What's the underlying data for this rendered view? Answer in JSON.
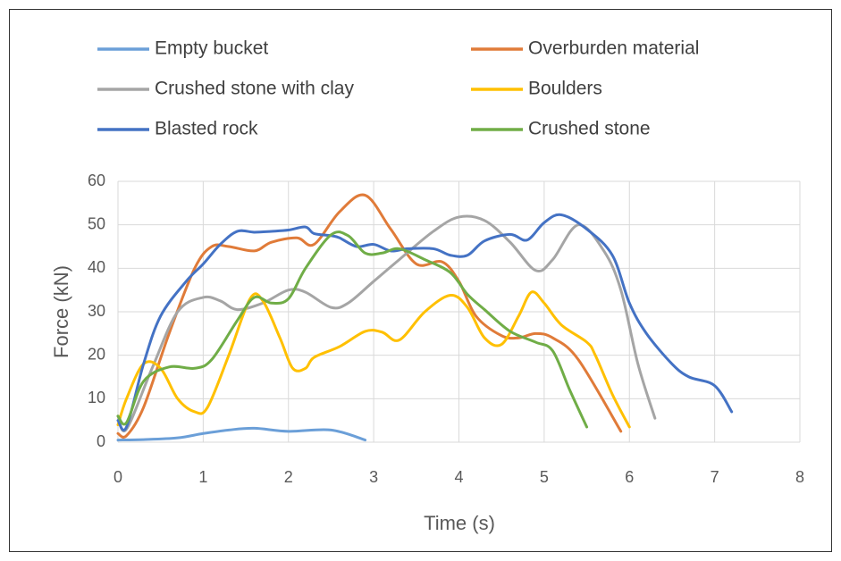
{
  "chart_data": {
    "type": "line",
    "x_label": "Time (s)",
    "y_label": "Force (kN)",
    "xlim": [
      0,
      8
    ],
    "xticks": [
      0,
      1,
      2,
      3,
      4,
      5,
      6,
      7,
      8
    ],
    "ylim": [
      0,
      60
    ],
    "yticks": [
      0,
      10,
      20,
      30,
      40,
      50,
      60
    ],
    "grid": true,
    "legend": "top",
    "series": [
      {
        "name": "Empty bucket",
        "color": "#6b9fd8",
        "x": [
          0,
          0.3,
          0.7,
          1,
          1.3,
          1.6,
          2,
          2.5,
          2.9
        ],
        "values": [
          0.5,
          0.6,
          1,
          2,
          2.8,
          3.2,
          2.5,
          2.8,
          0.5
        ]
      },
      {
        "name": "Overburden material",
        "color": "#e07b39",
        "x": [
          0,
          0.1,
          0.3,
          0.6,
          0.9,
          1.1,
          1.3,
          1.6,
          1.8,
          2.1,
          2.3,
          2.6,
          2.9,
          3.2,
          3.5,
          3.8,
          4.0,
          4.2,
          4.5,
          4.7,
          4.9,
          5.1,
          5.4,
          5.9
        ],
        "values": [
          2,
          1.5,
          8,
          25,
          40,
          45,
          45,
          44,
          46,
          47,
          45.5,
          53,
          56.8,
          49,
          41,
          41.5,
          37,
          29,
          24.5,
          24,
          25,
          24,
          19,
          2.5
        ]
      },
      {
        "name": "Crushed stone with clay",
        "color": "#a5a5a5",
        "x": [
          0,
          0.1,
          0.4,
          0.7,
          1,
          1.2,
          1.4,
          1.7,
          2,
          2.2,
          2.5,
          2.7,
          3,
          3.3,
          3.7,
          4,
          4.3,
          4.6,
          4.9,
          5.1,
          5.4,
          5.7,
          5.9,
          6.1,
          6.3
        ],
        "values": [
          6,
          3,
          17,
          30,
          33.3,
          32.5,
          30.5,
          32,
          35,
          34.5,
          31,
          32,
          37,
          42,
          48.5,
          51.8,
          51,
          46,
          39.5,
          42,
          50,
          44,
          35,
          18,
          5.5
        ]
      },
      {
        "name": "Boulders",
        "color": "#ffc000",
        "x": [
          0,
          0.1,
          0.3,
          0.5,
          0.7,
          0.9,
          1.05,
          1.3,
          1.55,
          1.7,
          1.9,
          2.05,
          2.2,
          2.3,
          2.6,
          2.9,
          3.1,
          3.3,
          3.6,
          3.9,
          4.1,
          4.3,
          4.5,
          4.7,
          4.85,
          5.0,
          5.2,
          5.5,
          5.6,
          5.8,
          6.0
        ],
        "values": [
          4,
          10,
          18,
          17,
          10,
          7,
          8,
          20,
          33,
          32.5,
          24,
          17,
          17,
          19.5,
          22,
          25.5,
          25.3,
          23.5,
          30,
          33.8,
          31,
          24,
          22.5,
          29,
          34.5,
          32,
          27,
          23,
          20,
          11,
          3.5
        ]
      },
      {
        "name": "Blasted rock",
        "color": "#4472c4",
        "x": [
          0,
          0.1,
          0.3,
          0.5,
          0.8,
          1,
          1.2,
          1.4,
          1.6,
          1.8,
          2,
          2.2,
          2.3,
          2.5,
          2.6,
          2.8,
          3,
          3.2,
          3.4,
          3.7,
          3.9,
          4.1,
          4.3,
          4.6,
          4.8,
          5.0,
          5.2,
          5.5,
          5.8,
          6.0,
          6.2,
          6.5,
          6.7,
          7.0,
          7.2
        ],
        "values": [
          5,
          3.5,
          18,
          29,
          37,
          41,
          45.5,
          48.5,
          48.3,
          48.5,
          48.8,
          49.5,
          48,
          47.5,
          47,
          45,
          45.5,
          44,
          44.5,
          44.5,
          43,
          43,
          46.3,
          47.8,
          46.5,
          50.5,
          52.3,
          49,
          43,
          32,
          25,
          18,
          15,
          13,
          7
        ]
      },
      {
        "name": "Crushed stone",
        "color": "#70ad47",
        "x": [
          0,
          0.1,
          0.3,
          0.6,
          0.9,
          1.1,
          1.4,
          1.6,
          1.8,
          2,
          2.2,
          2.5,
          2.7,
          2.9,
          3.1,
          3.3,
          3.6,
          3.9,
          4.1,
          4.3,
          4.6,
          4.9,
          5.1,
          5.3,
          5.5
        ],
        "values": [
          6,
          4.5,
          14,
          17.3,
          17,
          19,
          28,
          33.3,
          32,
          33,
          40,
          47.7,
          47.5,
          43.5,
          43.5,
          44.5,
          42,
          39,
          34,
          30.5,
          25.5,
          23,
          21,
          12,
          3.5
        ]
      }
    ]
  }
}
